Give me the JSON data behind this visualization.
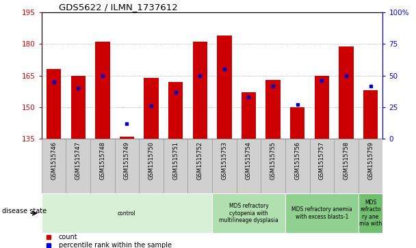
{
  "title": "GDS5622 / ILMN_1737612",
  "samples": [
    "GSM1515746",
    "GSM1515747",
    "GSM1515748",
    "GSM1515749",
    "GSM1515750",
    "GSM1515751",
    "GSM1515752",
    "GSM1515753",
    "GSM1515754",
    "GSM1515755",
    "GSM1515756",
    "GSM1515757",
    "GSM1515758",
    "GSM1515759"
  ],
  "counts": [
    168,
    165,
    181,
    136,
    164,
    162,
    181,
    184,
    157,
    163,
    150,
    165,
    179,
    158
  ],
  "percentile_ranks": [
    45,
    40,
    50,
    12,
    26,
    37,
    50,
    55,
    33,
    42,
    27,
    46,
    50,
    42
  ],
  "ymin": 135,
  "ymax": 195,
  "yticks": [
    135,
    150,
    165,
    180,
    195
  ],
  "right_yticks": [
    0,
    25,
    50,
    75,
    100
  ],
  "disease_groups": [
    {
      "label": "control",
      "start": 0,
      "end": 7,
      "color": "#d8f0d8"
    },
    {
      "label": "MDS refractory\ncytopenia with\nmultilineage dysplasia",
      "start": 7,
      "end": 10,
      "color": "#b0e0b0"
    },
    {
      "label": "MDS refractory anemia\nwith excess blasts-1",
      "start": 10,
      "end": 13,
      "color": "#90d090"
    },
    {
      "label": "MDS\nrefracto\nry ane\nmia with",
      "start": 13,
      "end": 14,
      "color": "#70c070"
    }
  ],
  "bar_color": "#cc0000",
  "percentile_color": "#0000cc",
  "grid_color": "#888888",
  "bar_width": 0.6,
  "tick_bg_color": "#d0d0d0",
  "tick_border_color": "#999999"
}
